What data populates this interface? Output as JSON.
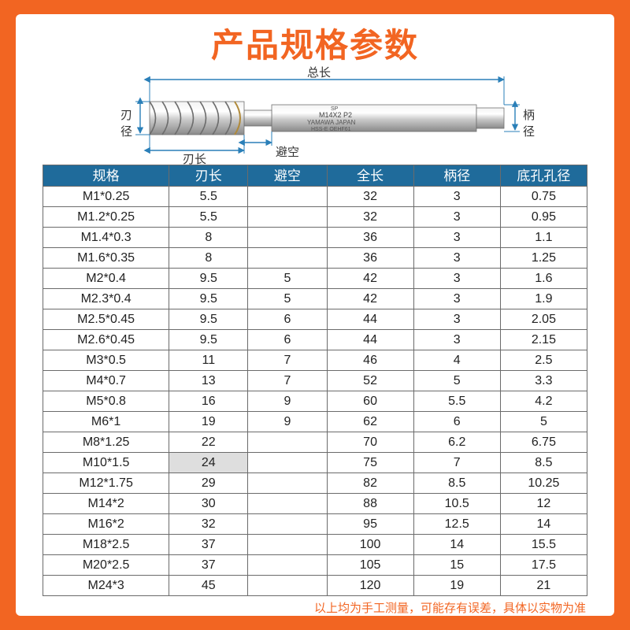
{
  "page": {
    "title": "产品规格参数",
    "footnote": "以上均为手工测量，可能存有误差，具体以实物为准"
  },
  "diagram": {
    "labels": {
      "total_length": "总长",
      "blade_dia": "刃径",
      "blade_len": "刃长",
      "relief": "避空",
      "shank_dia": "柄径"
    },
    "tool_text": {
      "line1": "SP",
      "line2": "M14X2  P2",
      "line3": "YAMAWA  JAPAN",
      "line4": "HSS-E  OEHF61"
    },
    "colors": {
      "arrow": "#2a7fb8",
      "body_light": "#f0f0f0",
      "body_dark": "#9c9c9c",
      "outline": "#707070",
      "text": "#333333"
    }
  },
  "table": {
    "headers": [
      "规格",
      "刃长",
      "避空",
      "全长",
      "柄径",
      "底孔孔径"
    ],
    "highlight_row": 13,
    "highlight_col": 1,
    "rows": [
      [
        "M1*0.25",
        "5.5",
        "",
        "32",
        "3",
        "0.75"
      ],
      [
        "M1.2*0.25",
        "5.5",
        "",
        "32",
        "3",
        "0.95"
      ],
      [
        "M1.4*0.3",
        "8",
        "",
        "36",
        "3",
        "1.1"
      ],
      [
        "M1.6*0.35",
        "8",
        "",
        "36",
        "3",
        "1.25"
      ],
      [
        "M2*0.4",
        "9.5",
        "5",
        "42",
        "3",
        "1.6"
      ],
      [
        "M2.3*0.4",
        "9.5",
        "5",
        "42",
        "3",
        "1.9"
      ],
      [
        "M2.5*0.45",
        "9.5",
        "6",
        "44",
        "3",
        "2.05"
      ],
      [
        "M2.6*0.45",
        "9.5",
        "6",
        "44",
        "3",
        "2.15"
      ],
      [
        "M3*0.5",
        "11",
        "7",
        "46",
        "4",
        "2.5"
      ],
      [
        "M4*0.7",
        "13",
        "7",
        "52",
        "5",
        "3.3"
      ],
      [
        "M5*0.8",
        "16",
        "9",
        "60",
        "5.5",
        "4.2"
      ],
      [
        "M6*1",
        "19",
        "9",
        "62",
        "6",
        "5"
      ],
      [
        "M8*1.25",
        "22",
        "",
        "70",
        "6.2",
        "6.75"
      ],
      [
        "M10*1.5",
        "24",
        "",
        "75",
        "7",
        "8.5"
      ],
      [
        "M12*1.75",
        "29",
        "",
        "82",
        "8.5",
        "10.25"
      ],
      [
        "M14*2",
        "30",
        "",
        "88",
        "10.5",
        "12"
      ],
      [
        "M16*2",
        "32",
        "",
        "95",
        "12.5",
        "14"
      ],
      [
        "M18*2.5",
        "37",
        "",
        "100",
        "14",
        "15.5"
      ],
      [
        "M20*2.5",
        "37",
        "",
        "105",
        "15",
        "17.5"
      ],
      [
        "M24*3",
        "45",
        "",
        "120",
        "19",
        "21"
      ]
    ]
  }
}
